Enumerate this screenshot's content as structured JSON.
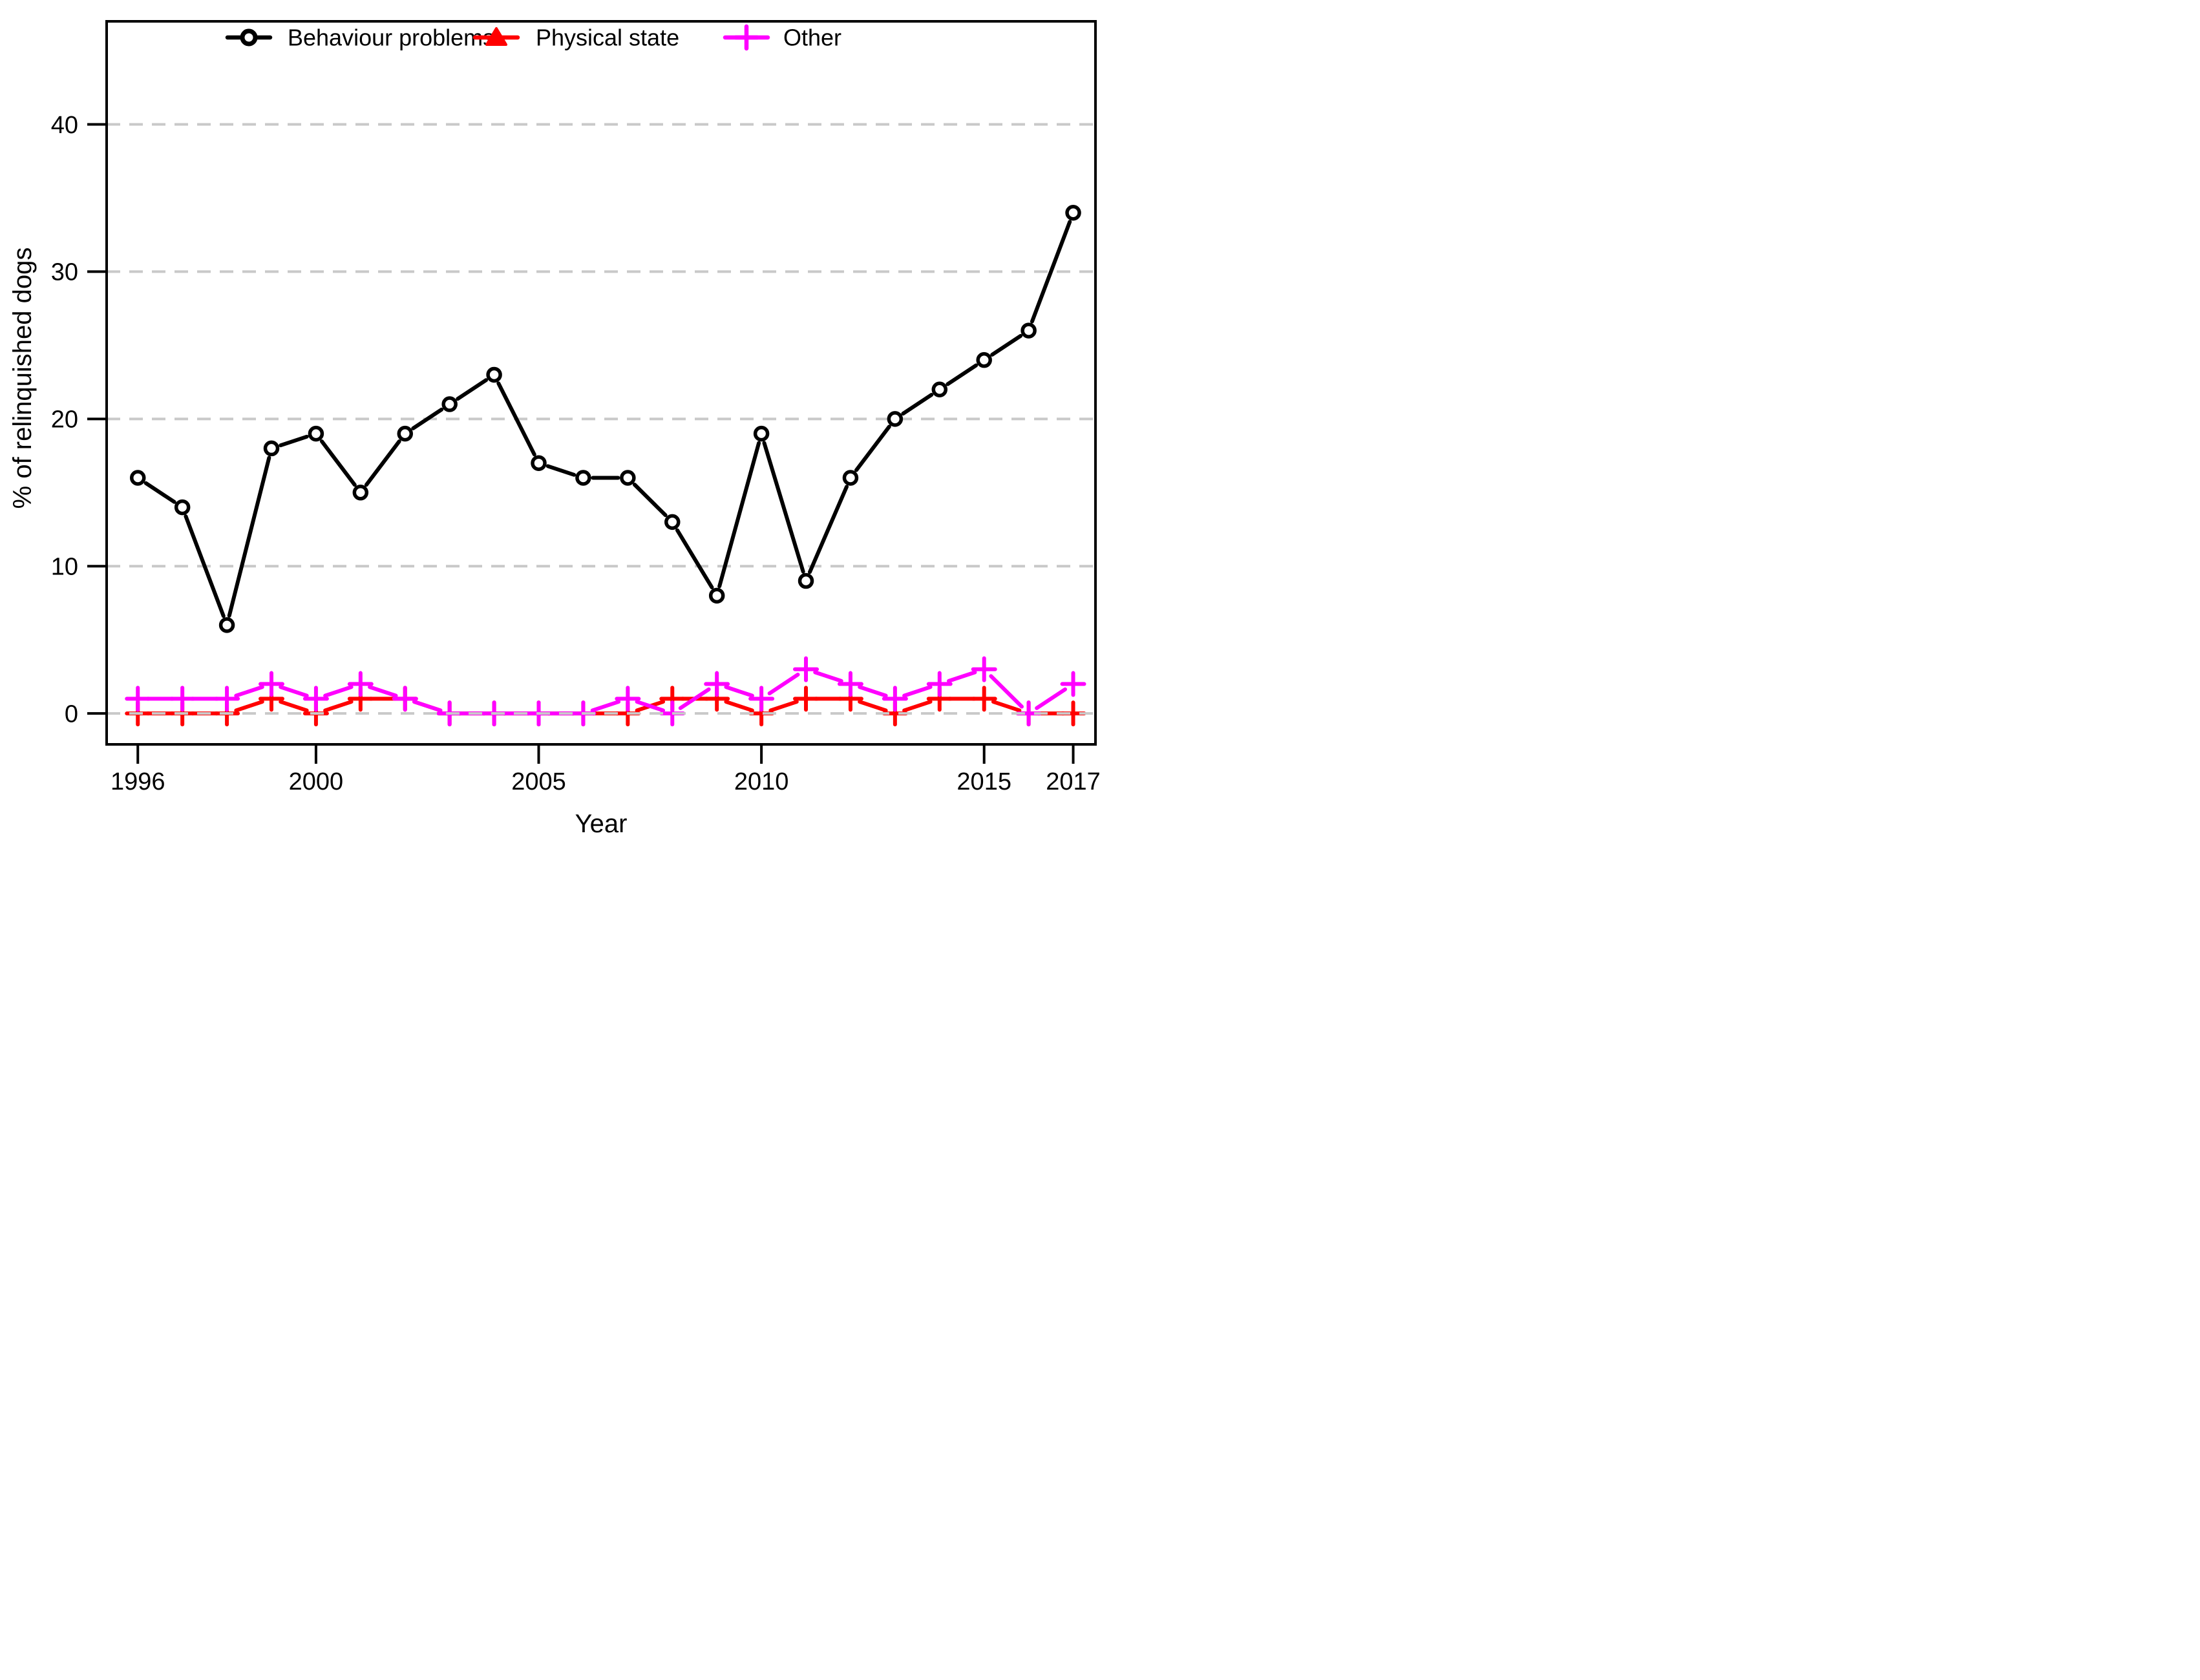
{
  "chart_data": {
    "type": "line",
    "title": "",
    "xlabel": "Year",
    "ylabel": "% of relinquished dogs",
    "x": [
      1996,
      1997,
      1998,
      1999,
      2000,
      2001,
      2002,
      2003,
      2004,
      2005,
      2006,
      2007,
      2008,
      2009,
      2010,
      2011,
      2012,
      2013,
      2014,
      2015,
      2016,
      2017
    ],
    "x_ticks": [
      1996,
      2000,
      2005,
      2010,
      2015,
      2017
    ],
    "y_ticks": [
      0,
      10,
      20,
      30,
      40
    ],
    "xlim": [
      1995.3,
      2017.5
    ],
    "ylim": [
      -2.1,
      47
    ],
    "grid": "horizontal-dashed",
    "legend_position": "top-inside",
    "series": [
      {
        "name": "Behaviour problems",
        "color": "#000000",
        "marker": "open-circle",
        "legend_marker": "line-circle",
        "values": [
          16,
          14,
          6,
          18,
          19,
          15,
          19,
          21,
          23,
          17,
          16,
          16,
          13,
          8,
          19,
          9,
          16,
          20,
          22,
          24,
          26,
          34
        ]
      },
      {
        "name": "Physical state",
        "color": "#ff0000",
        "marker": "plus",
        "legend_marker": "line-triangle",
        "values": [
          0,
          0,
          0,
          1,
          0,
          1,
          1,
          0,
          0,
          0,
          0,
          0,
          1,
          1,
          0,
          1,
          1,
          0,
          1,
          1,
          0,
          0
        ]
      },
      {
        "name": "Other",
        "color": "#ff00ff",
        "marker": "plus",
        "legend_marker": "line-plus",
        "values": [
          1,
          1,
          1,
          2,
          1,
          2,
          1,
          0,
          0,
          0,
          0,
          1,
          0,
          2,
          1,
          3,
          2,
          1,
          2,
          3,
          0,
          2
        ]
      }
    ],
    "colors": {
      "background": "#ffffff",
      "grid": "#c9c9c9",
      "axis": "#000000",
      "text": "#000000"
    }
  }
}
